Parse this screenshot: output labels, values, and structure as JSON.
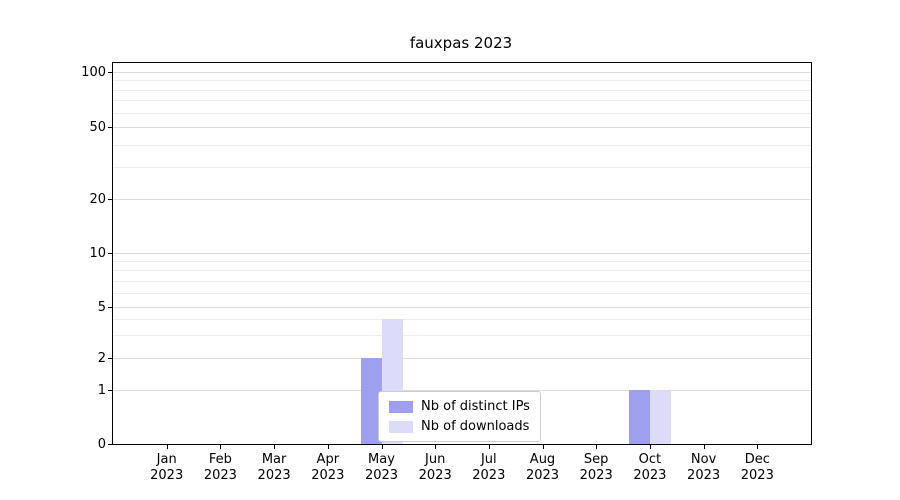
{
  "chart_data": {
    "type": "bar",
    "title": "fauxpas 2023",
    "categories": [
      "Jan",
      "Feb",
      "Mar",
      "Apr",
      "May",
      "Jun",
      "Jul",
      "Aug",
      "Sep",
      "Oct",
      "Nov",
      "Dec"
    ],
    "year": "2023",
    "series": [
      {
        "name": "Nb of distinct IPs",
        "color": "#9f9fef",
        "values": [
          0,
          0,
          0,
          0,
          2,
          0,
          0,
          0,
          0,
          1,
          0,
          0
        ]
      },
      {
        "name": "Nb of downloads",
        "color": "#dcdcf8",
        "values": [
          0,
          0,
          0,
          0,
          4,
          0,
          0,
          0,
          0,
          1,
          0,
          0
        ]
      }
    ],
    "y_axis": {
      "scale": "symlog",
      "ticks": [
        0,
        1,
        2,
        5,
        10,
        20,
        50,
        100
      ],
      "minor_gridlines": [
        3,
        4,
        6,
        7,
        8,
        9,
        30,
        40,
        60,
        70,
        80,
        90
      ],
      "range": [
        0,
        110
      ]
    },
    "xlabel": "",
    "ylabel": "",
    "grid": true,
    "legend": {
      "position": "lower center"
    }
  },
  "colors": {
    "axis": "#000000",
    "grid_major": "#dcdcdc",
    "grid_minor": "#ededed",
    "background": "#ffffff"
  }
}
